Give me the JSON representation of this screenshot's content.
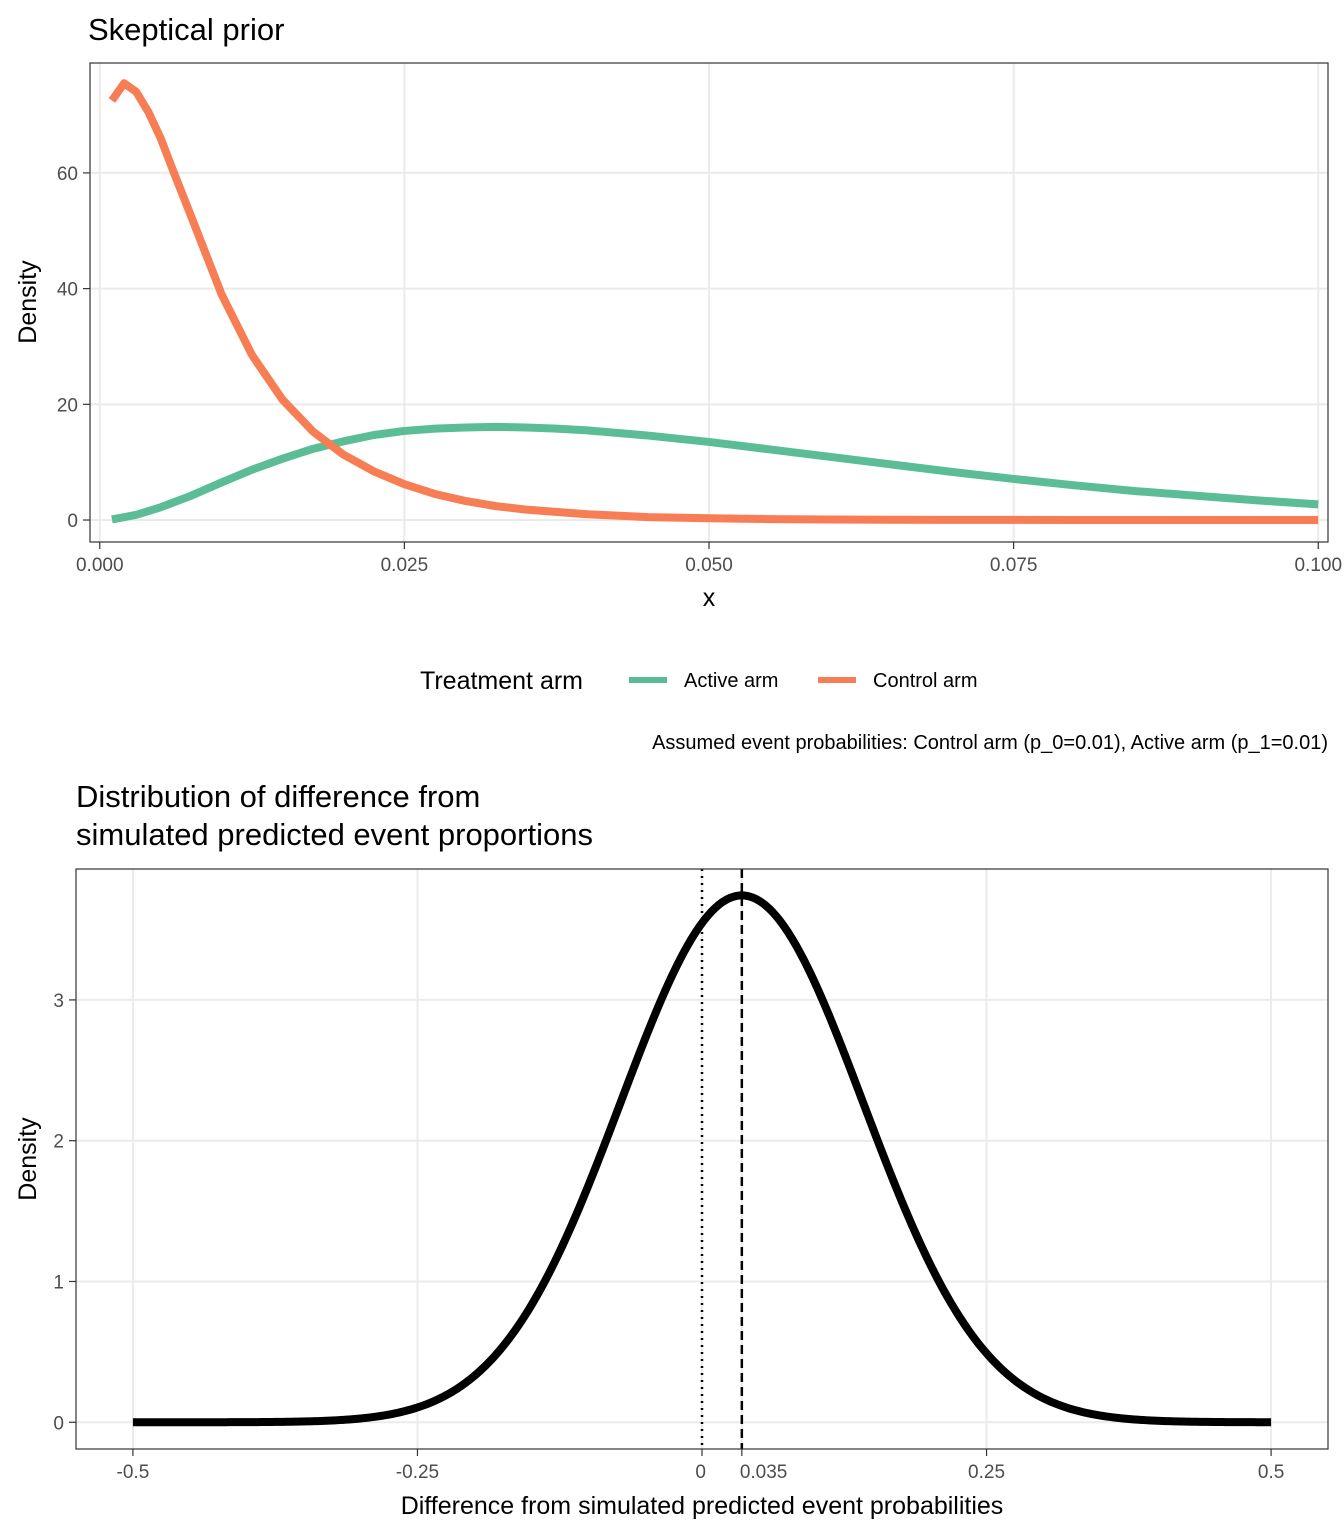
{
  "chart_data": [
    {
      "type": "line",
      "title": "Skeptical prior",
      "xlabel": "x",
      "ylabel": "Density",
      "xlim": [
        -0.0008,
        0.1008
      ],
      "ylim": [
        -3.8,
        79
      ],
      "x_ticks": [
        0.0,
        0.025,
        0.05,
        0.075,
        0.1
      ],
      "x_tick_labels": [
        "0.000",
        "0.025",
        "0.050",
        "0.075",
        "0.100"
      ],
      "y_ticks": [
        0,
        20,
        40,
        60
      ],
      "y_tick_labels": [
        "0",
        "20",
        "40",
        "60"
      ],
      "grid": true,
      "legend": {
        "title": "Treatment arm",
        "position": "bottom",
        "items": [
          {
            "label": "Active arm",
            "color": "#5bbd96"
          },
          {
            "label": "Control arm",
            "color": "#f77d55"
          }
        ]
      },
      "series": [
        {
          "name": "Active arm",
          "color": "#5bbd96",
          "x": [
            0.001,
            0.003,
            0.005,
            0.0075,
            0.01,
            0.0125,
            0.015,
            0.0175,
            0.02,
            0.0225,
            0.025,
            0.0275,
            0.03,
            0.0325,
            0.035,
            0.0375,
            0.04,
            0.045,
            0.05,
            0.055,
            0.06,
            0.065,
            0.07,
            0.075,
            0.08,
            0.085,
            0.09,
            0.095,
            0.1
          ],
          "y": [
            0.1,
            0.9,
            2.2,
            4.2,
            6.5,
            8.7,
            10.6,
            12.3,
            13.6,
            14.7,
            15.4,
            15.8,
            16.0,
            16.1,
            16.0,
            15.8,
            15.5,
            14.6,
            13.5,
            12.2,
            10.9,
            9.6,
            8.3,
            7.1,
            6.0,
            5.0,
            4.2,
            3.4,
            2.7
          ]
        },
        {
          "name": "Control arm",
          "color": "#f77d55",
          "x": [
            0.001,
            0.002,
            0.003,
            0.004,
            0.005,
            0.006,
            0.0075,
            0.01,
            0.0125,
            0.015,
            0.0175,
            0.02,
            0.0225,
            0.025,
            0.0275,
            0.03,
            0.0325,
            0.035,
            0.04,
            0.045,
            0.05,
            0.055,
            0.06,
            0.07,
            0.08,
            0.09,
            0.1
          ],
          "y": [
            72.5,
            75.5,
            74.0,
            70.5,
            66.0,
            60.5,
            52.5,
            39.0,
            28.5,
            20.8,
            15.3,
            11.3,
            8.4,
            6.2,
            4.5,
            3.3,
            2.4,
            1.8,
            1.0,
            0.5,
            0.3,
            0.15,
            0.08,
            0.03,
            0.01,
            0.0,
            0.0
          ]
        }
      ],
      "caption": "Assumed event probabilities: Control arm (p_0=0.01), Active arm (p_1=0.01)"
    },
    {
      "type": "line",
      "title": [
        "Distribution of difference from",
        "simulated predicted event proportions"
      ],
      "xlabel": "Difference from simulated predicted event probabilities",
      "ylabel": "Density",
      "xlim": [
        -0.55,
        0.55
      ],
      "ylim": [
        -0.19,
        3.93
      ],
      "x_ticks": [
        -0.5,
        -0.25,
        0,
        0.035,
        0.25,
        0.5
      ],
      "x_tick_labels": [
        "-0.5",
        "-0.25",
        "0",
        "0.035",
        "0.25",
        "0.5"
      ],
      "y_ticks": [
        0,
        1,
        2,
        3
      ],
      "y_tick_labels": [
        "0",
        "1",
        "2",
        "3"
      ],
      "grid": true,
      "reference_lines": [
        {
          "x": 0,
          "style": "dotted"
        },
        {
          "x": 0.035,
          "style": "dashed"
        }
      ],
      "series": [
        {
          "color": "#000000",
          "curve": "normal",
          "mean": 0.035,
          "sd": 0.1066,
          "x_range": [
            -0.5,
            0.5
          ]
        }
      ]
    }
  ]
}
